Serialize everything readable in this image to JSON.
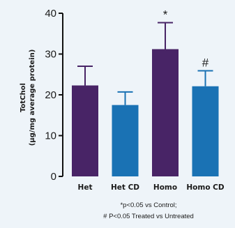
{
  "chart_data": {
    "type": "bar",
    "title": "",
    "ylabel_lines": [
      "TotChol",
      "(μg/mg average protein)"
    ],
    "xlabel": "",
    "ylim": [
      0,
      40
    ],
    "yticks": [
      0,
      10,
      20,
      30,
      40
    ],
    "grid": false,
    "legend": "none",
    "categories": [
      "Het",
      "Het CD",
      "Homo",
      "Homo CD"
    ],
    "values": [
      22.3,
      17.5,
      31.2,
      22.1
    ],
    "errors": [
      4.7,
      3.2,
      6.5,
      3.8
    ],
    "bar_colors": [
      "#482466",
      "#1a72b4",
      "#482466",
      "#1a72b4"
    ],
    "annotations": [
      "",
      "",
      "*",
      "#"
    ],
    "footnote": [
      "*p<0.05 vs Control;",
      "# P<0.05 Treated vs Untreated"
    ]
  }
}
